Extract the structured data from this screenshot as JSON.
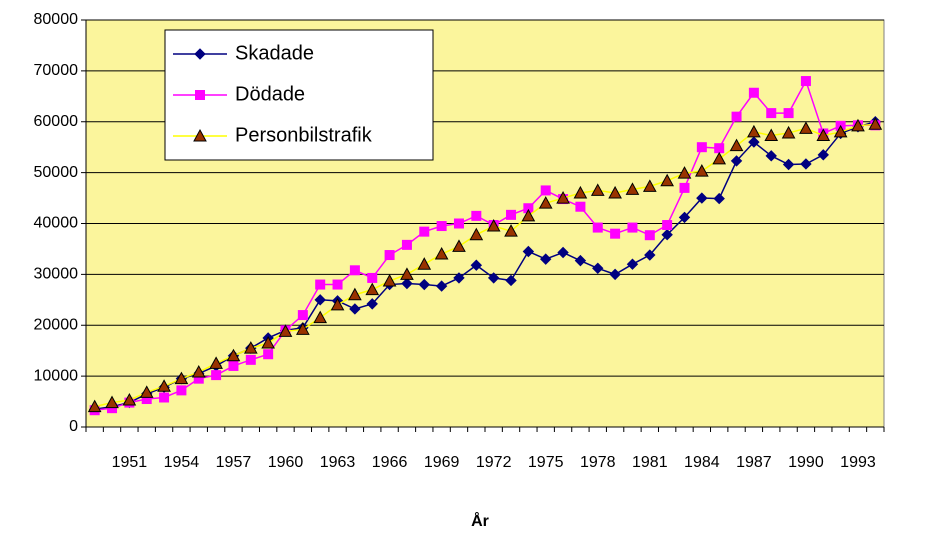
{
  "chart_data": {
    "type": "line",
    "x_label": "År",
    "categories": [
      null,
      null,
      "1951",
      null,
      null,
      "1954",
      null,
      null,
      "1957",
      null,
      null,
      "1960",
      null,
      null,
      "1963",
      null,
      null,
      "1966",
      null,
      null,
      "1969",
      null,
      null,
      "1972",
      null,
      null,
      "1975",
      null,
      null,
      "1978",
      null,
      null,
      "1981",
      null,
      null,
      "1984",
      null,
      null,
      "1987",
      null,
      null,
      "1990",
      null,
      null,
      "1993",
      null
    ],
    "ylim": [
      0,
      80000
    ],
    "yticks": [
      0,
      10000,
      20000,
      30000,
      40000,
      50000,
      60000,
      70000,
      80000
    ],
    "grid": true,
    "legend": "upper-left",
    "plot_background": "#fbf59c",
    "series": [
      {
        "name": "Skadade",
        "color": "#000080",
        "marker": "diamond",
        "marker_fill": "#000080",
        "values": [
          3500,
          4000,
          4800,
          6500,
          7800,
          9500,
          10500,
          12000,
          14000,
          15500,
          17500,
          19000,
          19500,
          25000,
          24800,
          23200,
          24200,
          28000,
          28200,
          28000,
          27700,
          29300,
          31800,
          29300,
          28800,
          34500,
          33000,
          34300,
          32700,
          31200,
          30000,
          32000,
          33800,
          37800,
          41200,
          45000,
          44900,
          52300,
          56000,
          53300,
          51600,
          51700,
          53500,
          57700,
          59000,
          60000
        ]
      },
      {
        "name": "Dödade",
        "color": "#ff00ff",
        "marker": "square",
        "marker_fill": "#ff00ff",
        "values": [
          3300,
          3700,
          4800,
          5500,
          5800,
          7200,
          9500,
          10200,
          12000,
          13200,
          14300,
          19000,
          22000,
          28000,
          28000,
          30800,
          29300,
          33800,
          35800,
          38400,
          39500,
          40000,
          41500,
          39700,
          41700,
          43000,
          46500,
          44800,
          43300,
          39200,
          38000,
          39200,
          37700,
          39700,
          47000,
          55000,
          54800,
          61000,
          65700,
          61700,
          61700,
          68000,
          57700,
          59200,
          59300,
          59300
        ]
      },
      {
        "name": "Personbilstrafik",
        "color": "#ffff00",
        "marker": "triangle",
        "marker_fill": "#993300",
        "values": [
          4000,
          4800,
          5300,
          6800,
          8000,
          9500,
          10800,
          12500,
          14000,
          15500,
          16500,
          18800,
          19200,
          21500,
          24000,
          26000,
          27000,
          28700,
          30000,
          32000,
          34000,
          35500,
          37800,
          39500,
          38500,
          41500,
          44000,
          45000,
          46000,
          46500,
          46000,
          46700,
          47300,
          48400,
          49900,
          50300,
          52700,
          55300,
          58000,
          57300,
          57800,
          58700,
          57300,
          58000,
          59200,
          59500
        ]
      }
    ]
  }
}
